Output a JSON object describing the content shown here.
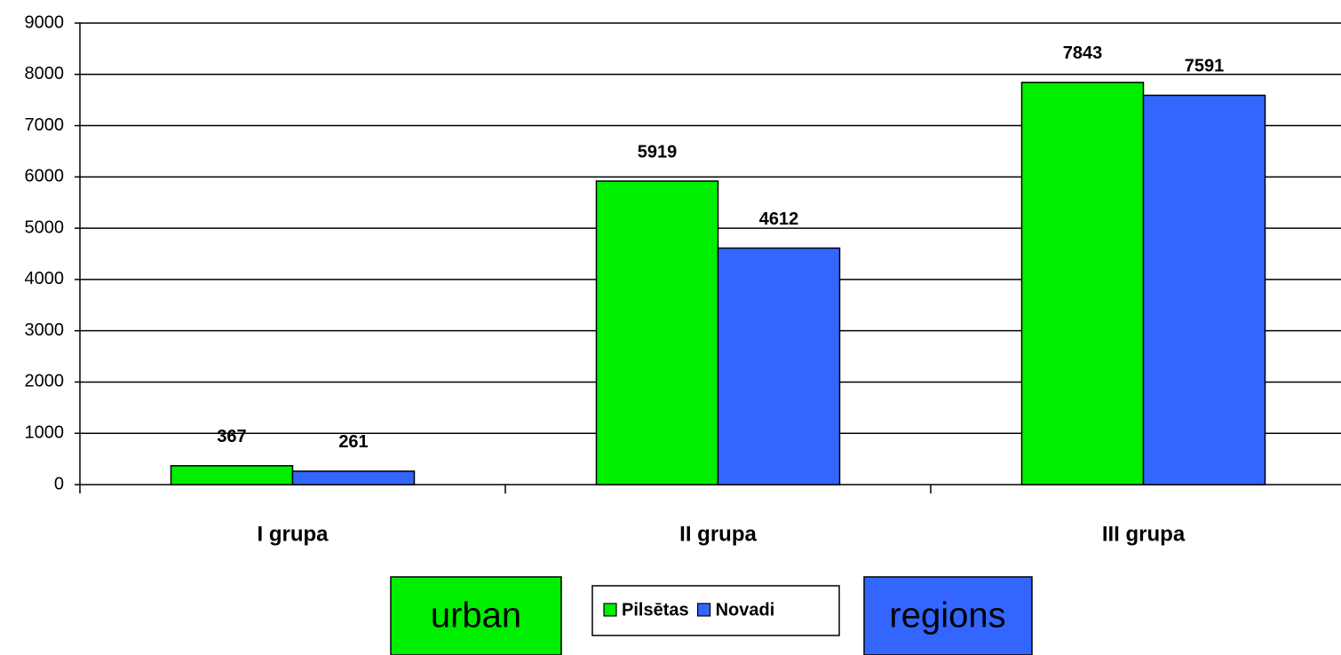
{
  "chart_data": {
    "type": "bar",
    "categories": [
      "I grupa",
      "II grupa",
      "III grupa"
    ],
    "series": [
      {
        "name": "Pilsētas",
        "color": "#00ee00",
        "values": [
          367,
          5919,
          7843
        ]
      },
      {
        "name": "Novadi",
        "color": "#3366ff",
        "values": [
          261,
          4612,
          7591
        ]
      }
    ],
    "ylim": [
      0,
      9000
    ],
    "yticks": [
      0,
      1000,
      2000,
      3000,
      4000,
      5000,
      6000,
      7000,
      8000,
      9000
    ],
    "grid": true,
    "legend": "bottom",
    "annotations": [
      "urban",
      "regions"
    ]
  }
}
